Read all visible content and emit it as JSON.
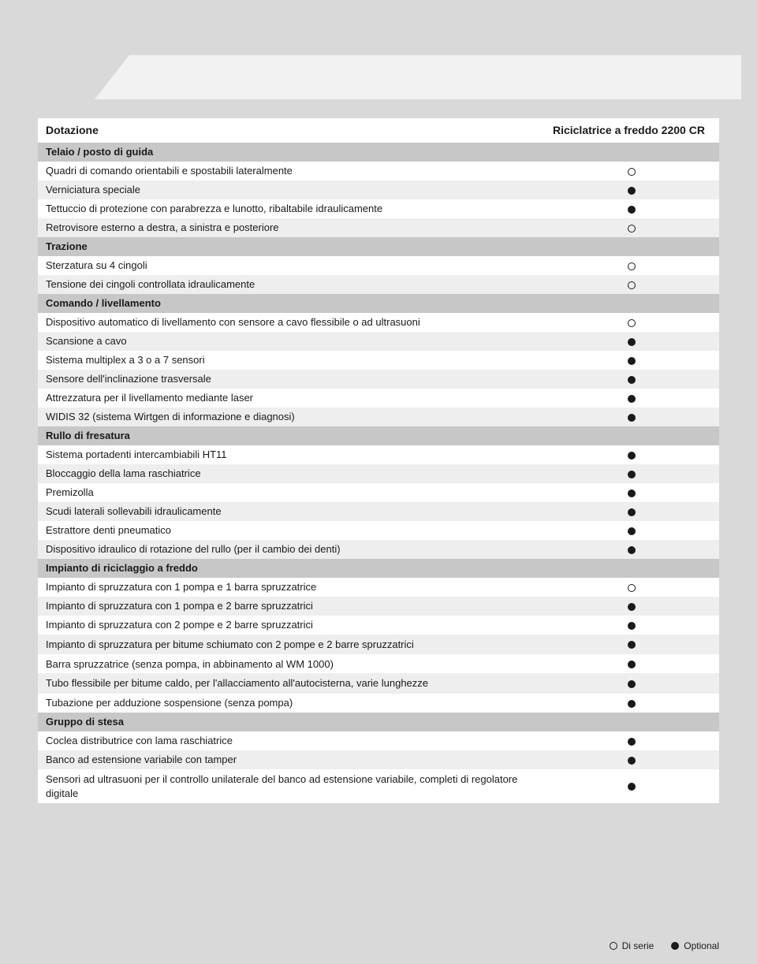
{
  "header": {
    "col1": "Dotazione",
    "col2": "Riciclatrice a freddo 2200 CR"
  },
  "legend": {
    "open_label": "Di serie",
    "solid_label": "Optional"
  },
  "colors": {
    "page_bg": "#d9d9d9",
    "section_bg": "#c7c7c7",
    "row_white": "#ffffff",
    "row_grey": "#eeeeee",
    "text": "#1a1a1a",
    "header_shape": "#f2f2f2"
  },
  "sections": [
    {
      "title": "Telaio / posto di guida",
      "rows": [
        {
          "label": "Quadri di comando orientabili e spostabili lateralmente",
          "mark": "open"
        },
        {
          "label": "Verniciatura speciale",
          "mark": "solid"
        },
        {
          "label": "Tettuccio di protezione con parabrezza e lunotto, ribaltabile idraulicamente",
          "mark": "solid"
        },
        {
          "label": "Retrovisore esterno a destra, a sinistra e posteriore",
          "mark": "open"
        }
      ]
    },
    {
      "title": "Trazione",
      "rows": [
        {
          "label": "Sterzatura su 4 cingoli",
          "mark": "open"
        },
        {
          "label": "Tensione dei cingoli controllata idraulicamente",
          "mark": "open"
        }
      ]
    },
    {
      "title": "Comando / livellamento",
      "rows": [
        {
          "label": "Dispositivo automatico di livellamento con sensore a cavo flessibile o ad ultrasuoni",
          "mark": "open"
        },
        {
          "label": "Scansione a cavo",
          "mark": "solid"
        },
        {
          "label": "Sistema multiplex a 3 o a 7 sensori",
          "mark": "solid"
        },
        {
          "label": "Sensore dell'inclinazione trasversale",
          "mark": "solid"
        },
        {
          "label": "Attrezzatura per il livellamento mediante laser",
          "mark": "solid"
        },
        {
          "label": "WIDIS 32 (sistema Wirtgen di informazione e diagnosi)",
          "mark": "solid"
        }
      ]
    },
    {
      "title": "Rullo di fresatura",
      "rows": [
        {
          "label": "Sistema portadenti intercambiabili HT11",
          "mark": "solid"
        },
        {
          "label": "Bloccaggio della lama raschiatrice",
          "mark": "solid"
        },
        {
          "label": "Premizolla",
          "mark": "solid"
        },
        {
          "label": "Scudi laterali sollevabili idraulicamente",
          "mark": "solid"
        },
        {
          "label": "Estrattore denti pneumatico",
          "mark": "solid"
        },
        {
          "label": "Dispositivo idraulico di rotazione del rullo (per il cambio dei denti)",
          "mark": "solid"
        }
      ]
    },
    {
      "title": "Impianto di riciclaggio a freddo",
      "rows": [
        {
          "label": "Impianto di spruzzatura con 1 pompa e 1 barra spruzzatrice",
          "mark": "open"
        },
        {
          "label": "Impianto di spruzzatura con 1 pompa e 2 barre spruzzatrici",
          "mark": "solid"
        },
        {
          "label": "Impianto di spruzzatura con 2 pompe e 2 barre spruzzatrici",
          "mark": "solid"
        },
        {
          "label": "Impianto di spruzzatura per bitume schiumato con 2 pompe e 2 barre spruzzatrici",
          "mark": "solid",
          "tall": true
        },
        {
          "label": "Barra spruzzatrice (senza pompa, in abbinamento al WM 1000)",
          "mark": "solid"
        },
        {
          "label": "Tubo flessibile per bitume caldo, per l'allacciamento all'autocisterna, varie lunghezze",
          "mark": "solid",
          "tall": true
        },
        {
          "label": "Tubazione per adduzione sospensione (senza pompa)",
          "mark": "solid"
        }
      ]
    },
    {
      "title": "Gruppo di stesa",
      "rows": [
        {
          "label": "Coclea distributrice con lama raschiatrice",
          "mark": "solid"
        },
        {
          "label": "Banco ad estensione variabile con tamper",
          "mark": "solid"
        },
        {
          "label": "Sensori ad ultrasuoni per il controllo unilaterale del banco ad estensione variabile, completi di regolatore digitale",
          "mark": "solid",
          "tall": true
        }
      ]
    }
  ]
}
